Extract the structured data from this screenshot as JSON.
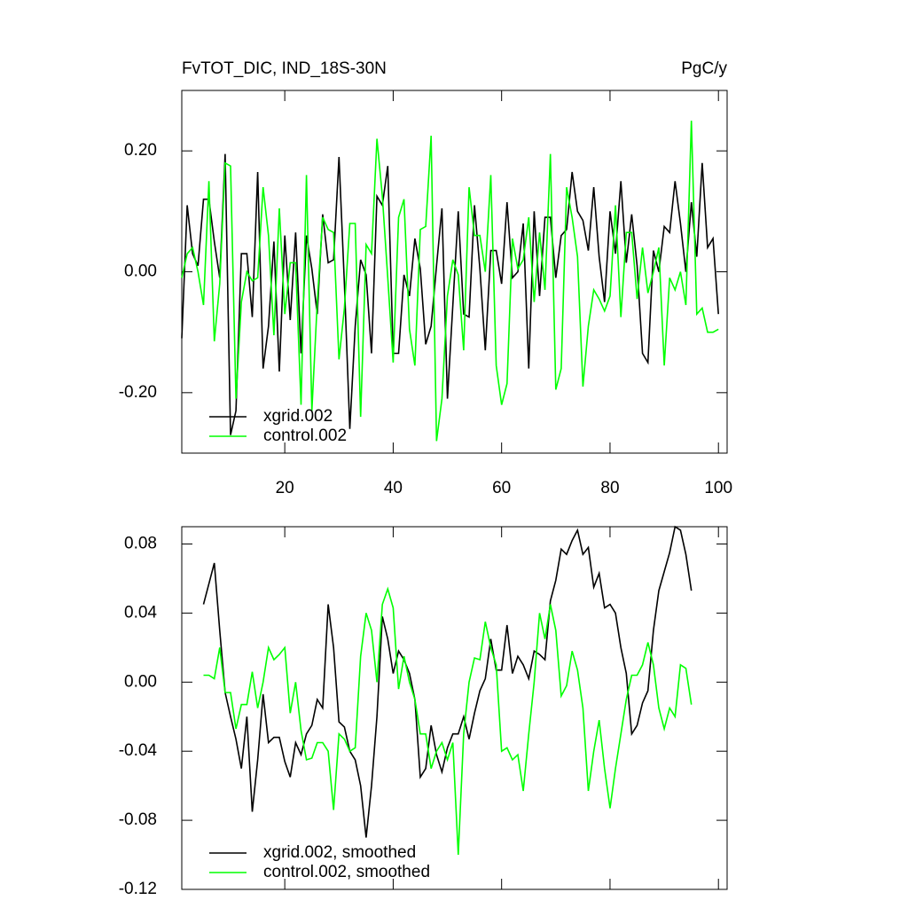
{
  "chart_data": [
    {
      "type": "line",
      "title": "FvTOT_DIC, IND_18S-30N",
      "units": "PgC/y",
      "x": [
        1,
        2,
        3,
        4,
        5,
        6,
        7,
        8,
        9,
        10,
        11,
        12,
        13,
        14,
        15,
        16,
        17,
        18,
        19,
        20,
        21,
        22,
        23,
        24,
        25,
        26,
        27,
        28,
        29,
        30,
        31,
        32,
        33,
        34,
        35,
        36,
        37,
        38,
        39,
        40,
        41,
        42,
        43,
        44,
        45,
        46,
        47,
        48,
        49,
        50,
        51,
        52,
        53,
        54,
        55,
        56,
        57,
        58,
        59,
        60,
        61,
        62,
        63,
        64,
        65,
        66,
        67,
        68,
        69,
        70,
        71,
        72,
        73,
        74,
        75,
        76,
        77,
        78,
        79,
        80,
        81,
        82,
        83,
        84,
        85,
        86,
        87,
        88,
        89,
        90,
        91,
        92,
        93,
        94,
        95,
        96,
        97,
        98,
        99,
        100
      ],
      "series": [
        {
          "name": "xgrid.002",
          "color": "#000000",
          "values": [
            -0.11,
            0.11,
            0.03,
            0.01,
            0.12,
            0.12,
            0.05,
            -0.01,
            0.195,
            -0.27,
            -0.23,
            0.03,
            0.03,
            -0.075,
            0.165,
            -0.16,
            -0.09,
            0.05,
            -0.165,
            0.06,
            -0.08,
            0.065,
            -0.135,
            0.06,
            0.005,
            -0.07,
            0.095,
            0.015,
            0.02,
            0.19,
            -0.02,
            -0.26,
            -0.09,
            0.02,
            -0.005,
            -0.135,
            0.125,
            0.11,
            0.175,
            -0.135,
            -0.135,
            -0.005,
            -0.04,
            0.055,
            0.005,
            -0.12,
            -0.09,
            0.01,
            0.105,
            -0.21,
            -0.055,
            0.1,
            -0.07,
            -0.075,
            0.11,
            0.005,
            -0.13,
            0.035,
            0.035,
            -0.02,
            0.115,
            -0.01,
            0,
            0.08,
            -0.16,
            0.1,
            -0.04,
            0.09,
            0.09,
            -0.01,
            0.06,
            0.07,
            0.165,
            0.1,
            0.085,
            0.035,
            0.14,
            0.025,
            -0.05,
            0.1,
            0.03,
            0.15,
            0.015,
            0.095,
            0.01,
            -0.135,
            -0.15,
            0.035,
            0,
            0.075,
            0.065,
            0.15,
            0.08,
            0,
            0.115,
            0.025,
            0.18,
            0.04,
            0.055,
            -0.07
          ]
        },
        {
          "name": "control.002",
          "color": "#00ff00",
          "values": [
            -0.01,
            0.03,
            0.04,
            0,
            -0.055,
            0.15,
            -0.115,
            -0.02,
            0.18,
            0.175,
            -0.21,
            -0.05,
            0,
            -0.015,
            -0.01,
            0.14,
            0.06,
            -0.105,
            0.105,
            -0.07,
            0.015,
            0.015,
            -0.22,
            0.16,
            -0.23,
            -0.05,
            0.09,
            0.07,
            0.065,
            -0.145,
            -0.06,
            0.08,
            0.08,
            -0.24,
            0.045,
            0.03,
            0.22,
            0.125,
            -0.01,
            -0.15,
            0.09,
            0.12,
            -0.095,
            -0.155,
            0.07,
            0.075,
            0.225,
            -0.28,
            -0.21,
            -0.04,
            0.02,
            -0.005,
            -0.13,
            0.14,
            0.06,
            0.06,
            0,
            0.16,
            -0.155,
            -0.22,
            -0.185,
            0.055,
            0.005,
            0.02,
            0.09,
            -0.05,
            0.065,
            -0.03,
            0.195,
            -0.195,
            -0.16,
            0.14,
            0.09,
            0.025,
            -0.19,
            -0.09,
            -0.03,
            -0.045,
            -0.065,
            -0.04,
            0.11,
            -0.075,
            0.065,
            0.065,
            -0.045,
            0.04,
            -0.035,
            0,
            0.04,
            -0.155,
            -0.01,
            -0.03,
            0,
            -0.055,
            0.25,
            -0.07,
            -0.06,
            -0.1,
            -0.1,
            -0.095
          ]
        }
      ],
      "xlim": [
        1,
        101.6
      ],
      "xticks": [
        20,
        40,
        60,
        80,
        100
      ],
      "ylim": [
        -0.3,
        0.3
      ],
      "yticks": [
        {
          "value": 0.2,
          "label": "0.20"
        },
        {
          "value": 0,
          "label": "0.00"
        },
        {
          "value": -0.2,
          "label": "-0.20"
        }
      ],
      "legend": "lower left"
    },
    {
      "type": "line",
      "x": [
        5,
        6,
        7,
        8,
        9,
        10,
        11,
        12,
        13,
        14,
        15,
        16,
        17,
        18,
        19,
        20,
        21,
        22,
        23,
        24,
        25,
        26,
        27,
        28,
        29,
        30,
        31,
        32,
        33,
        34,
        35,
        36,
        37,
        38,
        39,
        40,
        41,
        42,
        43,
        44,
        45,
        46,
        47,
        48,
        49,
        50,
        51,
        52,
        53,
        54,
        55,
        56,
        57,
        58,
        59,
        60,
        61,
        62,
        63,
        64,
        65,
        66,
        67,
        68,
        69,
        70,
        71,
        72,
        73,
        74,
        75,
        76,
        77,
        78,
        79,
        80,
        81,
        82,
        83,
        84,
        85,
        86,
        87,
        88,
        89,
        90,
        91,
        92,
        93,
        94,
        95
      ],
      "series": [
        {
          "name": "xgrid.002, smoothed",
          "color": "#000000",
          "values": [
            0.045,
            0.057,
            0.069,
            0.03,
            -0.006,
            -0.02,
            -0.033,
            -0.05,
            -0.02,
            -0.075,
            -0.045,
            -0.007,
            -0.035,
            -0.032,
            -0.032,
            -0.046,
            -0.055,
            -0.035,
            -0.042,
            -0.03,
            -0.025,
            -0.01,
            -0.015,
            0.045,
            0.02,
            -0.023,
            -0.026,
            -0.04,
            -0.045,
            -0.06,
            -0.09,
            -0.06,
            -0.02,
            0.038,
            0.025,
            0.005,
            0.018,
            0.013,
            0.005,
            -0.01,
            -0.055,
            -0.05,
            -0.025,
            -0.042,
            -0.052,
            -0.038,
            -0.03,
            -0.03,
            -0.02,
            -0.033,
            -0.018,
            -0.005,
            0.002,
            0.025,
            0.007,
            0.007,
            0.033,
            0.005,
            0.015,
            0.01,
            0.002,
            0.018,
            0.016,
            0.013,
            0.047,
            0.059,
            0.077,
            0.074,
            0.082,
            0.088,
            0.074,
            0.078,
            0.055,
            0.063,
            0.043,
            0.045,
            0.04,
            0.02,
            0.005,
            -0.03,
            -0.025,
            -0.012,
            -0.005,
            0.03,
            0.053,
            0.064,
            0.075,
            0.09,
            0.088,
            0.074,
            0.053
          ]
        },
        {
          "name": "control.002, smoothed",
          "color": "#00ff00",
          "values": [
            0.004,
            0.004,
            0.002,
            0.02,
            -0.006,
            -0.006,
            -0.027,
            -0.013,
            -0.013,
            0.006,
            -0.015,
            0,
            0.02,
            0.013,
            0.016,
            0.02,
            -0.018,
            0,
            -0.028,
            -0.045,
            -0.044,
            -0.035,
            -0.035,
            -0.04,
            -0.074,
            -0.03,
            -0.033,
            -0.04,
            -0.038,
            0.015,
            0.04,
            0.03,
            0,
            0.045,
            0.054,
            0.043,
            -0.004,
            0.015,
            0,
            -0.01,
            -0.03,
            -0.03,
            -0.05,
            -0.04,
            -0.035,
            -0.045,
            -0.035,
            -0.1,
            -0.03,
            0,
            0.014,
            0.013,
            0.035,
            0.02,
            0.01,
            -0.04,
            -0.038,
            -0.045,
            -0.042,
            -0.063,
            -0.03,
            0,
            0.04,
            0.025,
            0.045,
            0.03,
            -0.008,
            -0.002,
            0.018,
            0.007,
            -0.015,
            -0.063,
            -0.04,
            -0.022,
            -0.05,
            -0.073,
            -0.05,
            -0.03,
            -0.01,
            0.004,
            0.004,
            0.01,
            0.023,
            0.01,
            -0.015,
            -0.027,
            -0.015,
            -0.02,
            0.01,
            0.008,
            -0.013
          ]
        }
      ],
      "xlim": [
        1,
        101.6
      ],
      "xticks": [
        20,
        40,
        60,
        80,
        100
      ],
      "xtick_labels": false,
      "ylim": [
        -0.12,
        0.09
      ],
      "yticks": [
        0.08,
        0.04,
        {
          "value": 0,
          "label": "0.00"
        },
        -0.04,
        -0.08,
        -0.12
      ],
      "legend": "lower left"
    }
  ]
}
